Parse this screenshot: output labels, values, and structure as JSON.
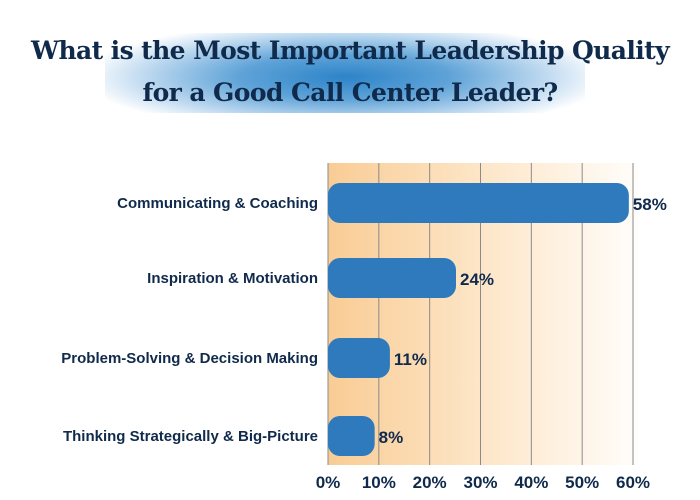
{
  "chart_data": {
    "type": "bar",
    "orientation": "horizontal",
    "title": "What is the Most Important Leadership Quality for a Good Call Center Leader?",
    "title_lines": [
      "What is the Most Important Leadership Quality",
      "for a Good Call Center Leader?"
    ],
    "categories": [
      "Communicating & Coaching",
      "Inspiration & Motivation",
      "Problem-Solving & Decision Making",
      "Thinking Strategically & Big-Picture"
    ],
    "values": [
      58,
      24,
      11,
      8
    ],
    "data_labels": [
      "58%",
      "24%",
      "11%",
      "8%"
    ],
    "xlim": [
      0,
      60
    ],
    "x_ticks": [
      0,
      10,
      20,
      30,
      40,
      50,
      60
    ],
    "x_tick_labels": [
      "0%",
      "10%",
      "20%",
      "30%",
      "40%",
      "50%",
      "60%"
    ],
    "grid": true,
    "colors": {
      "bar": "#2e7abd",
      "text": "#102a4c",
      "background_gradient_start": "#f9cc95",
      "grid": "#8a8a8a"
    }
  }
}
